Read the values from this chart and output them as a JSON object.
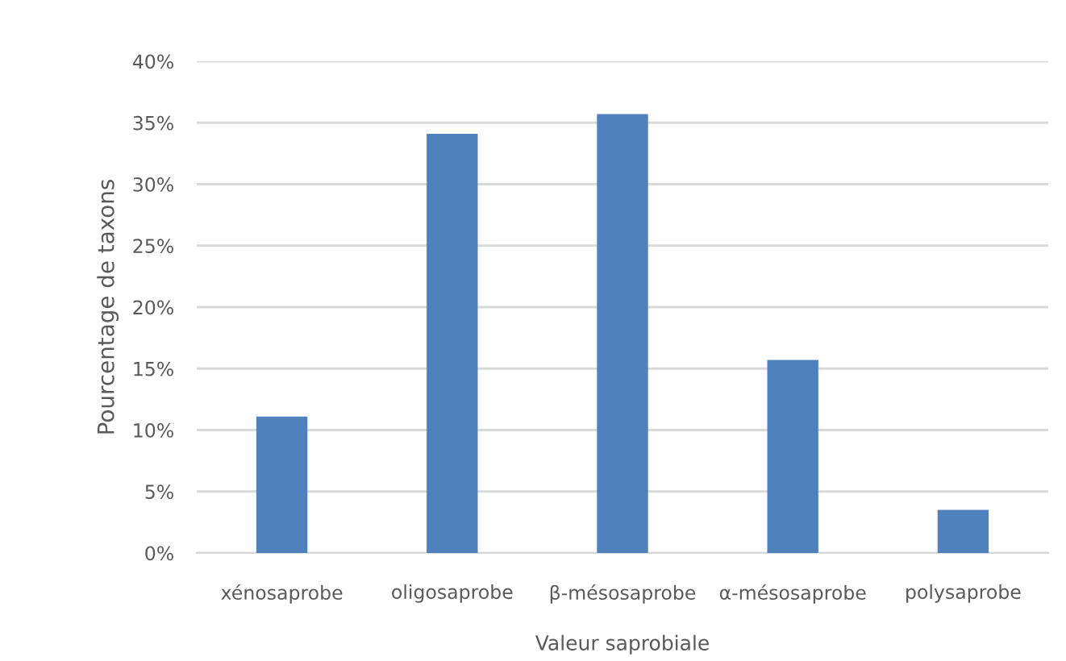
{
  "chart_data": {
    "type": "bar",
    "categories": [
      "xénosaprobe",
      "oligosaprobe",
      "β-mésosaprobe",
      "α-mésosaprobe",
      "polysaprobe"
    ],
    "values": [
      11.1,
      34.1,
      35.7,
      15.7,
      3.5
    ],
    "color": "#4f81bd",
    "xlabel": "Valeur saprobiale",
    "ylabel": "Pourcentage de taxons",
    "ylim": [
      0,
      40
    ],
    "yticks": [
      {
        "value": 0,
        "label": "0%"
      },
      {
        "value": 5,
        "label": "5%"
      },
      {
        "value": 10,
        "label": "10%"
      },
      {
        "value": 15,
        "label": "15%"
      },
      {
        "value": 20,
        "label": "20%"
      },
      {
        "value": 25,
        "label": "25%"
      },
      {
        "value": 30,
        "label": "30%"
      },
      {
        "value": 35,
        "label": "35%"
      },
      {
        "value": 40,
        "label": "40%"
      }
    ],
    "grid": "y",
    "legend": false
  }
}
